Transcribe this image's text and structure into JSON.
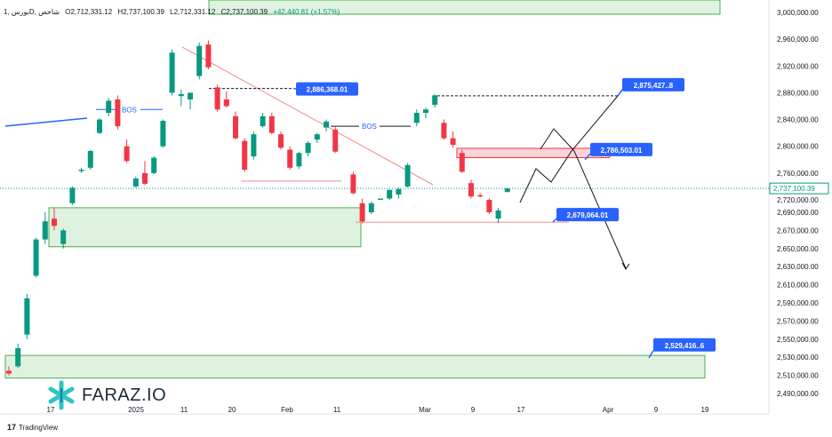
{
  "header": {
    "symbol": "بورس ,1D, شاخص",
    "open": "O2,712,331.12",
    "high": "H2,737,100.39",
    "low": "L2,712,331.12",
    "close": "C2,737,100.39",
    "change": "+42,440.81 (+1.57%)"
  },
  "branding": {
    "logo_text": "FARAZ.IO",
    "footer_text": "TradingView"
  },
  "colors": {
    "up": "#089981",
    "down": "#f23645",
    "zone_green": "#4caf50",
    "zone_red": "#f23645",
    "callout": "#2962ff",
    "trend_line": "#f28b8b"
  },
  "chart_data": {
    "type": "candlestick",
    "y_axis_ticks": [
      "3,000,000.00",
      "2,960,000.00",
      "2,920,000.00",
      "2,880,000.00",
      "2,840,000.00",
      "2,800,000.00",
      "2,760,000.00",
      "2,720,000.00",
      "2,690,000.00",
      "2,670,000.00",
      "2,650,000.00",
      "2,630,000.00",
      "2,610,000.00",
      "2,590,000.00",
      "2,570,000.00",
      "2,550,000.00",
      "2,530,000.00",
      "2,510,000.00",
      "2,490,000.00"
    ],
    "x_axis_ticks": [
      "17",
      "2025",
      "11",
      "20",
      "Feb",
      "11",
      "Mar",
      "9",
      "17",
      "Apr",
      "9",
      "19"
    ],
    "current_price_label": "2,737,100.39",
    "candles": [
      {
        "o": 2515000,
        "h": 2520000,
        "l": 2510000,
        "c": 2512000
      },
      {
        "o": 2520000,
        "h": 2545000,
        "l": 2518000,
        "c": 2540000
      },
      {
        "o": 2555000,
        "h": 2600000,
        "l": 2550000,
        "c": 2595000
      },
      {
        "o": 2620000,
        "h": 2662000,
        "l": 2618000,
        "c": 2660000
      },
      {
        "o": 2660000,
        "h": 2690000,
        "l": 2655000,
        "c": 2680000
      },
      {
        "o": 2683000,
        "h": 2695000,
        "l": 2670000,
        "c": 2675000
      },
      {
        "o": 2655000,
        "h": 2672000,
        "l": 2650000,
        "c": 2670000
      },
      {
        "o": 2700000,
        "h": 2740000,
        "l": 2698000,
        "c": 2738000
      },
      {
        "o": 2763000,
        "h": 2768000,
        "l": 2760000,
        "c": 2765000
      },
      {
        "o": 2768000,
        "h": 2795000,
        "l": 2765000,
        "c": 2793000
      },
      {
        "o": 2820000,
        "h": 2842000,
        "l": 2818000,
        "c": 2840000
      },
      {
        "o": 2850000,
        "h": 2872000,
        "l": 2845000,
        "c": 2868000
      },
      {
        "o": 2870000,
        "h": 2876000,
        "l": 2825000,
        "c": 2830000
      },
      {
        "o": 2800000,
        "h": 2810000,
        "l": 2775000,
        "c": 2778000
      },
      {
        "o": 2740000,
        "h": 2755000,
        "l": 2738000,
        "c": 2752000
      },
      {
        "o": 2760000,
        "h": 2778000,
        "l": 2742000,
        "c": 2744000
      },
      {
        "o": 2760000,
        "h": 2785000,
        "l": 2758000,
        "c": 2783000
      },
      {
        "o": 2800000,
        "h": 2840000,
        "l": 2798000,
        "c": 2838000
      },
      {
        "o": 2880000,
        "h": 2945000,
        "l": 2876000,
        "c": 2940000
      },
      {
        "o": 2875000,
        "h": 2885000,
        "l": 2860000,
        "c": 2878000
      },
      {
        "o": 2870000,
        "h": 2880000,
        "l": 2855000,
        "c": 2880000
      },
      {
        "o": 2905000,
        "h": 2955000,
        "l": 2900000,
        "c": 2950000
      },
      {
        "o": 2952000,
        "h": 2958000,
        "l": 2915000,
        "c": 2918000
      },
      {
        "o": 2888000,
        "h": 2892000,
        "l": 2852000,
        "c": 2855000
      },
      {
        "o": 2870000,
        "h": 2882000,
        "l": 2858000,
        "c": 2860000
      },
      {
        "o": 2845000,
        "h": 2852000,
        "l": 2810000,
        "c": 2812000
      },
      {
        "o": 2808000,
        "h": 2812000,
        "l": 2762000,
        "c": 2765000
      },
      {
        "o": 2785000,
        "h": 2822000,
        "l": 2780000,
        "c": 2818000
      },
      {
        "o": 2830000,
        "h": 2850000,
        "l": 2828000,
        "c": 2845000
      },
      {
        "o": 2845000,
        "h": 2850000,
        "l": 2818000,
        "c": 2820000
      },
      {
        "o": 2818000,
        "h": 2822000,
        "l": 2795000,
        "c": 2798000
      },
      {
        "o": 2795000,
        "h": 2800000,
        "l": 2765000,
        "c": 2768000
      },
      {
        "o": 2770000,
        "h": 2792000,
        "l": 2766000,
        "c": 2790000
      },
      {
        "o": 2790000,
        "h": 2808000,
        "l": 2785000,
        "c": 2805000
      },
      {
        "o": 2810000,
        "h": 2820000,
        "l": 2805000,
        "c": 2818000
      },
      {
        "o": 2828000,
        "h": 2840000,
        "l": 2822000,
        "c": 2837000
      },
      {
        "o": 2825000,
        "h": 2830000,
        "l": 2790000,
        "c": 2792000
      },
      {
        "o": 2758000,
        "h": 2762000,
        "l": 2728000,
        "c": 2730000
      },
      {
        "o": 2700000,
        "h": 2705000,
        "l": 2678000,
        "c": 2680000
      },
      {
        "o": 2690000,
        "h": 2702000,
        "l": 2688000,
        "c": 2700000
      },
      {
        "o": 2710000,
        "h": 2725000,
        "l": 2708000,
        "c": 2722000
      },
      {
        "o": 2722000,
        "h": 2735000,
        "l": 2720000,
        "c": 2735000
      },
      {
        "o": 2728000,
        "h": 2738000,
        "l": 2722000,
        "c": 2736000
      },
      {
        "o": 2740000,
        "h": 2775000,
        "l": 2738000,
        "c": 2772000
      },
      {
        "o": 2835000,
        "h": 2855000,
        "l": 2830000,
        "c": 2850000
      },
      {
        "o": 2850000,
        "h": 2858000,
        "l": 2842000,
        "c": 2855000
      },
      {
        "o": 2862000,
        "h": 2878000,
        "l": 2858000,
        "c": 2876000
      },
      {
        "o": 2835000,
        "h": 2840000,
        "l": 2810000,
        "c": 2812000
      },
      {
        "o": 2812000,
        "h": 2822000,
        "l": 2798000,
        "c": 2802000
      },
      {
        "o": 2790000,
        "h": 2795000,
        "l": 2760000,
        "c": 2762000
      },
      {
        "o": 2745000,
        "h": 2750000,
        "l": 2722000,
        "c": 2725000
      },
      {
        "o": 2727000,
        "h": 2730000,
        "l": 2724000,
        "c": 2726000
      },
      {
        "o": 2720000,
        "h": 2722000,
        "l": 2688000,
        "c": 2690000
      },
      {
        "o": 2683000,
        "h": 2695000,
        "l": 2678000,
        "c": 2692000
      },
      {
        "o": 2712331,
        "h": 2737100,
        "l": 2712331,
        "c": 2737100
      }
    ],
    "annotations": [
      {
        "text": "2,886,368.01",
        "price": 2886368
      },
      {
        "text": "2,875,427..8",
        "price": 2875427
      },
      {
        "text": "2,786,503.01",
        "price": 2786503
      },
      {
        "text": "2,679,064.01",
        "price": 2679064
      },
      {
        "text": "2,529,416..6",
        "price": 2529416
      }
    ],
    "bos_labels": [
      "BOS",
      "BOS"
    ]
  }
}
